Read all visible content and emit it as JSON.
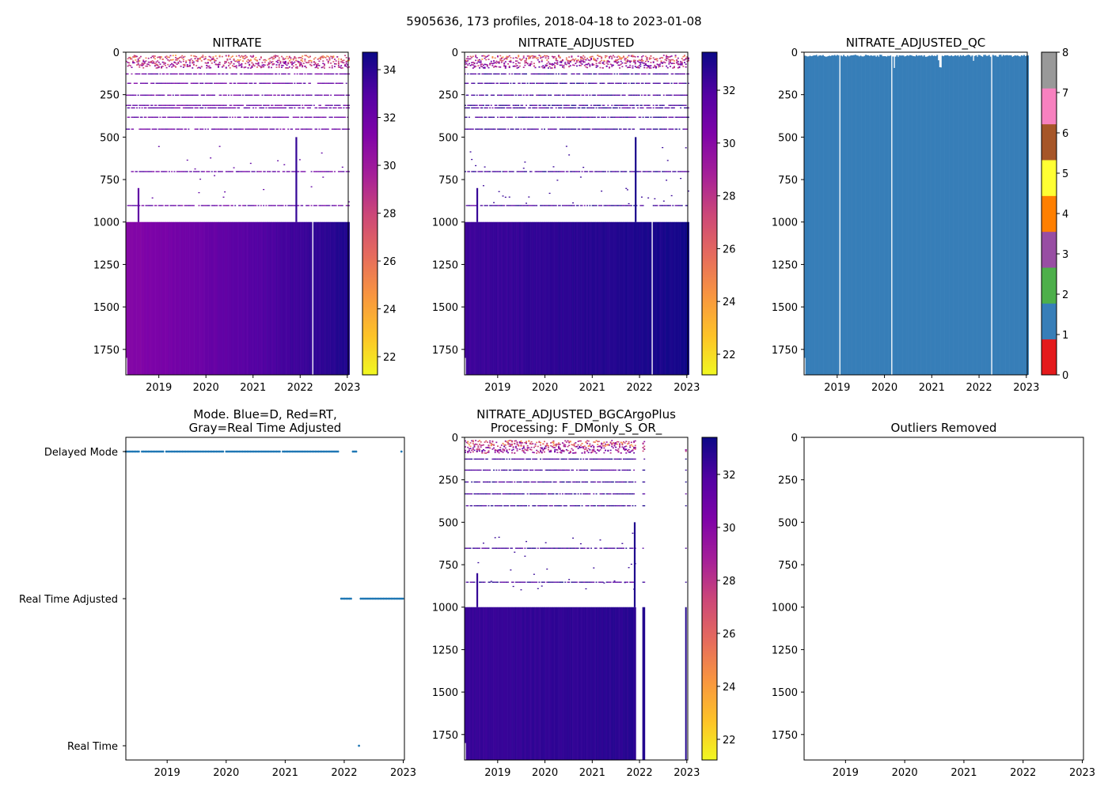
{
  "figure": {
    "suptitle": "5905636, 173 profiles, 2018-04-18 to 2023-01-08"
  },
  "chart_data": {
    "type": "heatmap",
    "float_id": "5905636",
    "n_profiles": 173,
    "date_range": [
      "2018-04-18",
      "2023-01-08"
    ],
    "panels": [
      {
        "id": "nitrate",
        "type": "heatmap",
        "title_lines": [
          "NITRATE"
        ],
        "xlim": [
          2018.3,
          2023.02
        ],
        "xticks": [
          "2019",
          "2020",
          "2021",
          "2022",
          "2023"
        ],
        "ylim": [
          1900,
          0
        ],
        "yticks": [
          "0",
          "250",
          "500",
          "750",
          "1000",
          "1250",
          "1500",
          "1750"
        ],
        "colorbar": {
          "cmap": "plasma_r",
          "min": 21.24,
          "max": 34.73,
          "ticks": [
            "22",
            "24",
            "26",
            "28",
            "30",
            "32",
            "34"
          ]
        },
        "deep_layer": {
          "depth_range": [
            1000,
            1900
          ],
          "value_start": 31.0,
          "value_end": 34.3,
          "gaps": [
            2022.25
          ]
        },
        "sparse_depths": [
          125,
          180,
          250,
          310,
          325,
          380,
          450,
          700,
          900
        ],
        "surface_values_range": [
          22,
          30
        ],
        "spikes": [
          {
            "year": 2018.55,
            "from": 800,
            "to": 1000,
            "value": 32.5
          },
          {
            "year": 2021.9,
            "from": 500,
            "to": 1000,
            "value": 33.8
          }
        ]
      },
      {
        "id": "nitrate_adjusted",
        "type": "heatmap",
        "title_lines": [
          "NITRATE_ADJUSTED"
        ],
        "xlim": [
          2018.3,
          2023.02
        ],
        "xticks": [
          "2019",
          "2020",
          "2021",
          "2022",
          "2023"
        ],
        "ylim": [
          1900,
          0
        ],
        "yticks": [
          "0",
          "250",
          "500",
          "750",
          "1000",
          "1250",
          "1500",
          "1750"
        ],
        "colorbar": {
          "cmap": "plasma_r",
          "min": 21.22,
          "max": 33.44,
          "ticks": [
            "22",
            "24",
            "26",
            "28",
            "30",
            "32"
          ]
        },
        "deep_layer": {
          "depth_range": [
            1000,
            1900
          ],
          "value_start": 32.3,
          "value_end": 33.3,
          "gaps": [
            2022.25
          ]
        },
        "sparse_depths": [
          125,
          180,
          250,
          310,
          325,
          380,
          450,
          700,
          900
        ],
        "surface_values_range": [
          22,
          30
        ],
        "spikes": [
          {
            "year": 2018.55,
            "from": 800,
            "to": 1000,
            "value": 32.5
          },
          {
            "year": 2021.9,
            "from": 500,
            "to": 1000,
            "value": 33.2
          }
        ]
      },
      {
        "id": "nitrate_adjusted_qc",
        "type": "heatmap",
        "title_lines": [
          "NITRATE_ADJUSTED_QC"
        ],
        "xlim": [
          2018.3,
          2023.02
        ],
        "xticks": [
          "2019",
          "2020",
          "2021",
          "2022",
          "2023"
        ],
        "ylim": [
          1900,
          0
        ],
        "yticks": [
          "0",
          "250",
          "500",
          "750",
          "1000",
          "1250",
          "1500",
          "1750"
        ],
        "colorbar": {
          "cmap": "qc",
          "min": 0,
          "max": 8,
          "ticks": [
            "0",
            "1",
            "2",
            "3",
            "4",
            "5",
            "6",
            "7",
            "8"
          ],
          "colors": [
            "#e41a1c",
            "#377eb8",
            "#4daf4a",
            "#984ea3",
            "#ff7f00",
            "#ffff33",
            "#a65628",
            "#f781bf",
            "#999999"
          ]
        },
        "dominant_qc": 1,
        "gaps": [
          2019.05,
          2020.15,
          2022.25
        ]
      },
      {
        "id": "mode",
        "type": "scatter",
        "title_lines": [
          "Mode. Blue=D, Red=RT,",
          "Gray=Real Time Adjusted"
        ],
        "xlim": [
          2018.3,
          2023.02
        ],
        "xticks": [
          "2019",
          "2020",
          "2021",
          "2022",
          "2023"
        ],
        "categories": [
          "Delayed Mode",
          "Real Time Adjusted",
          "Real Time"
        ],
        "series": [
          {
            "name": "Delayed Mode",
            "ranges": [
              [
                2018.3,
                2021.9
              ],
              [
                2022.12,
                2022.22
              ]
            ],
            "points": [
              2022.97
            ]
          },
          {
            "name": "Real Time Adjusted",
            "ranges": [
              [
                2021.95,
                2022.12
              ],
              [
                2022.28,
                2023.02
              ]
            ],
            "points": []
          },
          {
            "name": "Real Time",
            "ranges": [],
            "points": [
              2022.25
            ]
          }
        ],
        "marker_color": "#1f77b4"
      },
      {
        "id": "nitrate_adjusted_bgcargoplus",
        "type": "heatmap",
        "title_lines": [
          "NITRATE_ADJUSTED_BGCArgoPlus",
          "Processing: F_DMonly_S_OR_"
        ],
        "xlim": [
          2018.3,
          2023.02
        ],
        "xticks": [
          "2019",
          "2020",
          "2021",
          "2022",
          "2023"
        ],
        "ylim": [
          1900,
          0
        ],
        "yticks": [
          "0",
          "250",
          "500",
          "750",
          "1000",
          "1250",
          "1500",
          "1750"
        ],
        "colorbar": {
          "cmap": "plasma_r",
          "min": 21.22,
          "max": 33.4,
          "ticks": [
            "22",
            "24",
            "26",
            "28",
            "30",
            "32"
          ]
        },
        "deep_layer": {
          "depth_range": [
            1000,
            1900
          ],
          "value_start": 32.4,
          "value_end": 32.9,
          "active_ranges": [
            [
              2018.3,
              2021.9
            ],
            [
              2022.05,
              2022.09
            ],
            [
              2022.95,
              2022.98
            ]
          ]
        },
        "sparse_depths": [
          125,
          190,
          260,
          330,
          400,
          650,
          850
        ],
        "surface_values_range": [
          22,
          30
        ],
        "spikes": [
          {
            "year": 2018.55,
            "from": 800,
            "to": 1000,
            "value": 32.5
          },
          {
            "year": 2021.88,
            "from": 500,
            "to": 1000,
            "value": 33.0
          }
        ]
      },
      {
        "id": "outliers_removed",
        "type": "heatmap",
        "title_lines": [
          "Outliers Removed"
        ],
        "xlim": [
          2018.3,
          2023.02
        ],
        "xticks": [
          "2019",
          "2020",
          "2021",
          "2022",
          "2023"
        ],
        "ylim": [
          1900,
          0
        ],
        "yticks": [
          "0",
          "250",
          "500",
          "750",
          "1000",
          "1250",
          "1500",
          "1750"
        ],
        "empty": true
      }
    ]
  }
}
